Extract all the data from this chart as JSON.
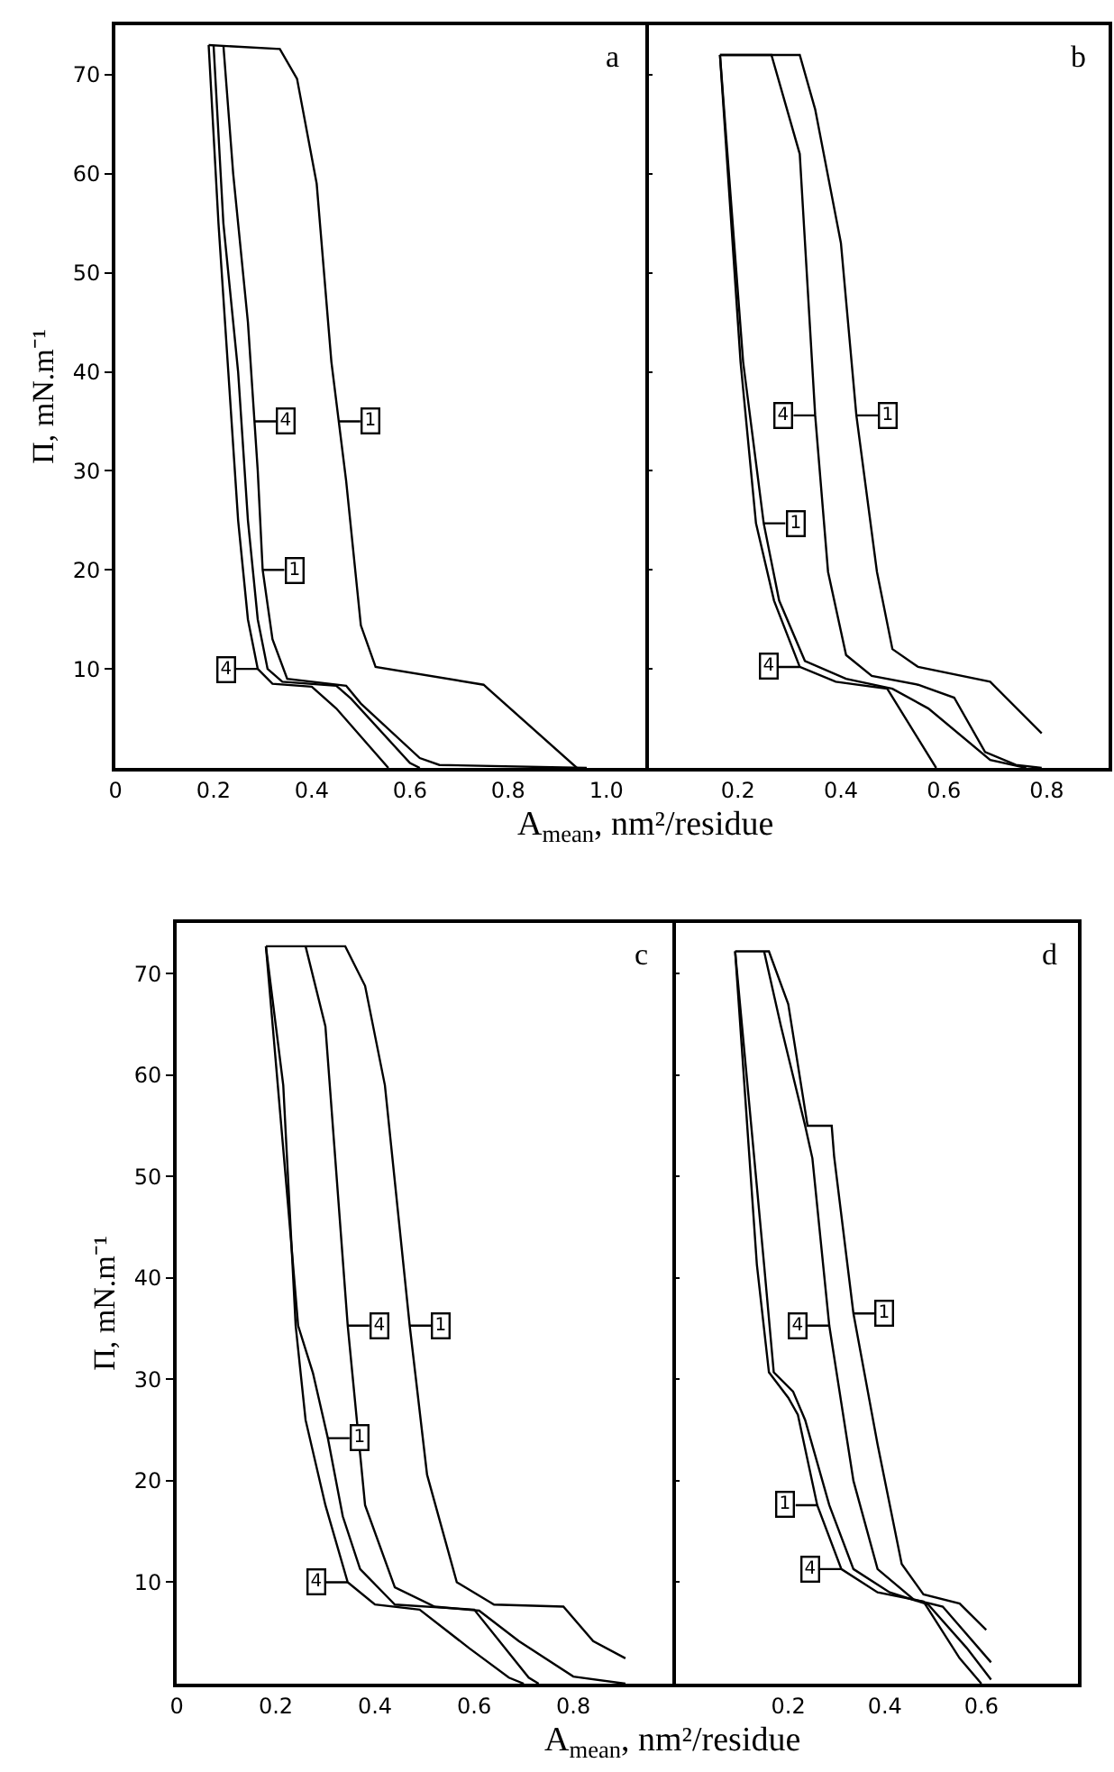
{
  "chart_data": [
    {
      "type": "line",
      "ylabel": "Π, mN.m⁻¹",
      "xlabel": "A$_{mean}$, nm²/residue",
      "xlim": [
        0,
        1.08
      ],
      "xticks": [
        0,
        0.2,
        0.4,
        0.6,
        0.8,
        {
          "value": 1,
          "label": "1.0"
        }
      ],
      "ylim": [
        0,
        75
      ],
      "yticks": [
        10,
        20,
        30,
        40,
        50,
        60,
        70
      ],
      "annotations": [
        "a",
        {
          "text": "4",
          "x": 0.283,
          "y": 35
        },
        {
          "text": "1",
          "x": 0.455,
          "y": 35
        },
        {
          "text": "1",
          "x": 0.3,
          "y": 20
        },
        {
          "text": "4",
          "x": 0.29,
          "y": 10
        }
      ],
      "series": [
        {
          "color": "#000000",
          "x": [
            0.94,
            0.75,
            0.53,
            0.5,
            0.47,
            0.44,
            0.41,
            0.37,
            0.335,
            0.19
          ],
          "values": [
            0,
            8.4,
            10.2,
            14.4,
            29,
            41,
            59,
            69.6,
            72.6,
            73
          ]
        },
        {
          "color": "#000000",
          "x": [
            0.22,
            0.24,
            0.27,
            0.29,
            0.3,
            0.32,
            0.35,
            0.47,
            0.5,
            0.62,
            0.66,
            0.96
          ],
          "values": [
            73,
            60,
            45,
            30,
            20,
            13,
            9,
            8.3,
            6.5,
            1,
            0.3,
            0
          ]
        },
        {
          "color": "#000000",
          "x": [
            0.2,
            0.22,
            0.25,
            0.27,
            0.29,
            0.31,
            0.34,
            0.45,
            0.48,
            0.6,
            0.62
          ],
          "values": [
            73,
            55,
            40,
            25,
            15,
            10,
            8.7,
            8.3,
            7,
            0.5,
            0
          ]
        },
        {
          "color": "#000000",
          "x": [
            0.19,
            0.21,
            0.23,
            0.25,
            0.27,
            0.29,
            0.32,
            0.4,
            0.45,
            0.556
          ],
          "values": [
            73,
            55,
            40,
            25,
            15,
            10,
            8.5,
            8.2,
            6,
            0
          ]
        }
      ]
    },
    {
      "type": "line",
      "xlim": [
        0.02,
        0.92
      ],
      "xticks": [
        0.2,
        0.4,
        0.6,
        0.8
      ],
      "ylim": [
        0,
        75
      ],
      "yticks": [
        10,
        20,
        30,
        40,
        50,
        60,
        70
      ],
      "tick_labels": "x",
      "annotations": [
        "b",
        {
          "text": "4",
          "x": 0.35,
          "y": 35.6
        },
        {
          "text": "1",
          "x": 0.43,
          "y": 35.6
        },
        {
          "text": "1",
          "x": 0.25,
          "y": 24.7
        },
        {
          "text": "4",
          "x": 0.32,
          "y": 10.2
        }
      ],
      "series": [
        {
          "color": "#000000",
          "x": [
            0.165,
            0.32,
            0.35,
            0.4,
            0.43,
            0.47,
            0.5,
            0.55,
            0.69,
            0.79
          ],
          "values": [
            72,
            72,
            66.5,
            53,
            35.6,
            19.8,
            12,
            10.2,
            8.7,
            3.5
          ]
        },
        {
          "color": "#000000",
          "x": [
            0.165,
            0.265,
            0.32,
            0.35,
            0.375,
            0.41,
            0.46,
            0.55,
            0.62,
            0.68,
            0.74,
            0.79
          ],
          "values": [
            72,
            72,
            62,
            35.6,
            19.8,
            11.4,
            9.3,
            8.4,
            7.1,
            1.6,
            0.3,
            0
          ]
        },
        {
          "color": "#000000",
          "x": [
            0.165,
            0.205,
            0.235,
            0.27,
            0.32,
            0.39,
            0.49,
            0.585
          ],
          "values": [
            72,
            41,
            24.7,
            16.9,
            10.2,
            8.7,
            8,
            0
          ]
        },
        {
          "color": "#000000",
          "x": [
            0.165,
            0.21,
            0.25,
            0.28,
            0.33,
            0.41,
            0.5,
            0.57,
            0.69,
            0.76
          ],
          "values": [
            72,
            41,
            24.7,
            16.9,
            10.8,
            9,
            8,
            6,
            0.8,
            0
          ]
        }
      ]
    },
    {
      "type": "line",
      "ylabel": "Π, mN.m⁻¹",
      "xlabel": "A$_{mean}$, nm²/residue",
      "xlim": [
        0,
        1.0
      ],
      "xticks": [
        0,
        0.2,
        0.4,
        0.6,
        0.8
      ],
      "ylim": [
        0,
        75
      ],
      "yticks": [
        10,
        20,
        30,
        40,
        50,
        60,
        70
      ],
      "annotations": [
        "c",
        {
          "text": "4",
          "x": 0.345,
          "y": 35.3
        },
        {
          "text": "1",
          "x": 0.47,
          "y": 35.3
        },
        {
          "text": "1",
          "x": 0.305,
          "y": 24.2
        },
        {
          "text": "4",
          "x": 0.345,
          "y": 10
        }
      ],
      "series": [
        {
          "color": "#000000",
          "x": [
            0.18,
            0.34,
            0.38,
            0.42,
            0.47,
            0.505,
            0.565,
            0.64,
            0.78,
            0.84,
            0.905
          ],
          "values": [
            72.7,
            72.7,
            68.8,
            59,
            35.3,
            20.6,
            10,
            7.8,
            7.6,
            4.2,
            2.5
          ]
        },
        {
          "color": "#000000",
          "x": [
            0.26,
            0.3,
            0.345,
            0.38,
            0.44,
            0.52,
            0.61,
            0.69,
            0.8,
            0.905
          ],
          "values": [
            72.7,
            64.8,
            35.3,
            17.6,
            9.5,
            7.6,
            7.2,
            4.2,
            0.7,
            0
          ]
        },
        {
          "color": "#000000",
          "x": [
            0.18,
            0.215,
            0.24,
            0.26,
            0.3,
            0.345,
            0.4,
            0.49,
            0.59,
            0.67,
            0.7
          ],
          "values": [
            72.7,
            59,
            35.3,
            26,
            17.6,
            10,
            7.8,
            7.3,
            3.5,
            0.6,
            0
          ]
        },
        {
          "color": "#000000",
          "x": [
            0.18,
            0.225,
            0.245,
            0.275,
            0.305,
            0.335,
            0.37,
            0.44,
            0.6,
            0.71,
            0.73
          ],
          "values": [
            72.7,
            47,
            35.3,
            30.6,
            24.2,
            16.5,
            11.3,
            7.8,
            7.3,
            0.6,
            0
          ]
        }
      ]
    },
    {
      "type": "line",
      "xlim": [
        -0.04,
        0.8
      ],
      "xticks": [
        0.2,
        0.4,
        0.6
      ],
      "ylim": [
        0,
        75
      ],
      "yticks": [
        10,
        20,
        30,
        40,
        50,
        60,
        70
      ],
      "tick_labels": "x",
      "annotations": [
        "d",
        {
          "text": "4",
          "x": 0.285,
          "y": 35.3
        },
        {
          "text": "1",
          "x": 0.335,
          "y": 36.5
        },
        {
          "text": "1",
          "x": 0.26,
          "y": 17.6
        },
        {
          "text": "4",
          "x": 0.31,
          "y": 11.3
        }
      ],
      "series": [
        {
          "color": "#000000",
          "x": [
            0.09,
            0.16,
            0.2,
            0.235,
            0.24,
            0.29,
            0.295,
            0.335,
            0.385,
            0.435,
            0.48,
            0.555,
            0.61
          ],
          "values": [
            72.2,
            72.2,
            67,
            56.5,
            55,
            55,
            52,
            36.5,
            23.6,
            11.8,
            8.8,
            7.9,
            5.3
          ]
        },
        {
          "color": "#000000",
          "x": [
            0.15,
            0.185,
            0.235,
            0.25,
            0.285,
            0.335,
            0.385,
            0.46,
            0.52,
            0.62
          ],
          "values": [
            72.2,
            64.8,
            55,
            51.8,
            35.3,
            20,
            11.3,
            8.3,
            7.6,
            2.1
          ]
        },
        {
          "color": "#000000",
          "x": [
            0.09,
            0.135,
            0.16,
            0.2,
            0.22,
            0.26,
            0.31,
            0.385,
            0.48,
            0.555,
            0.6
          ],
          "values": [
            72.2,
            41.3,
            30.7,
            28.2,
            26.5,
            17.6,
            11.3,
            9,
            8.1,
            2.5,
            0
          ]
        },
        {
          "color": "#000000",
          "x": [
            0.09,
            0.15,
            0.17,
            0.21,
            0.235,
            0.285,
            0.335,
            0.41,
            0.49,
            0.57,
            0.62
          ],
          "values": [
            72.2,
            41.3,
            30.7,
            28.8,
            26,
            17.6,
            11.3,
            9,
            7.8,
            3.5,
            0.4
          ]
        }
      ]
    }
  ]
}
